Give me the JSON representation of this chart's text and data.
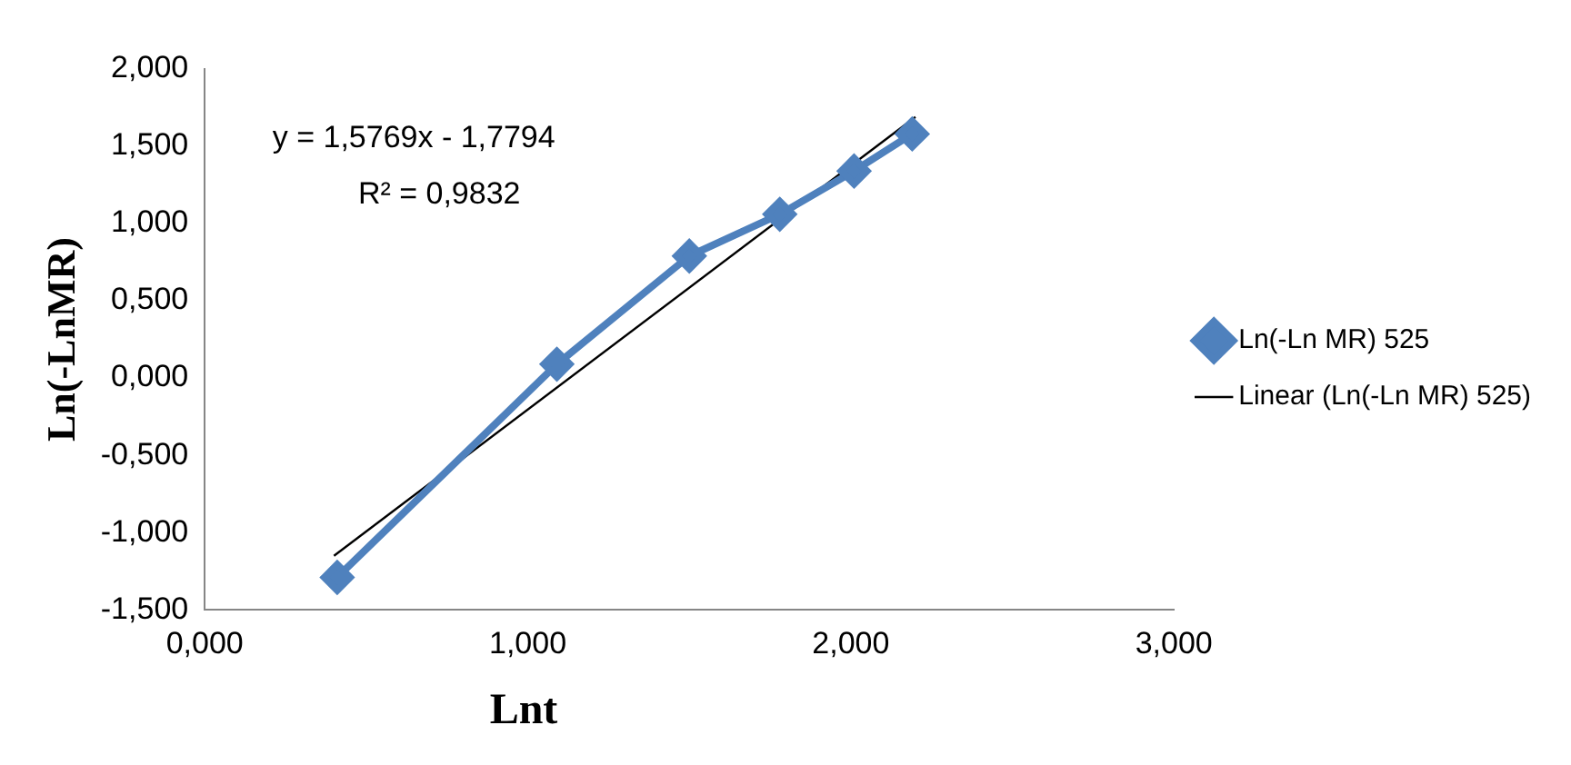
{
  "chart_data": {
    "type": "line",
    "xlabel": "Lnt",
    "ylabel": "Ln(-LnMR)",
    "annotations": [
      "y = 1,5769x - 1,7794",
      "R² = 0,9832"
    ],
    "xlim": [
      0,
      3
    ],
    "xticks": [
      {
        "value": 0,
        "label": "0,000"
      },
      {
        "value": 1,
        "label": "1,000"
      },
      {
        "value": 2,
        "label": "2,000"
      },
      {
        "value": 3,
        "label": "3,000"
      }
    ],
    "ylim": [
      -1.5,
      2
    ],
    "yticks": [
      {
        "value": -1.5,
        "label": "-1,500"
      },
      {
        "value": -1,
        "label": "-1,000"
      },
      {
        "value": -0.5,
        "label": "-0,500"
      },
      {
        "value": 0,
        "label": "0,000"
      },
      {
        "value": 0.5,
        "label": "0,500"
      },
      {
        "value": 1,
        "label": "1,000"
      },
      {
        "value": 1.5,
        "label": "1,500"
      },
      {
        "value": 2,
        "label": "2,000"
      }
    ],
    "legend": "right",
    "grid": false,
    "series": [
      {
        "name": "Ln(-Ln MR) 525",
        "color": "#4f81bd",
        "marker": "diamond",
        "x": [
          0.41,
          1.09,
          1.5,
          1.78,
          2.01,
          2.19
        ],
        "values": [
          -1.29,
          0.09,
          0.79,
          1.06,
          1.34,
          1.58
        ]
      },
      {
        "name": "Linear (Ln(-Ln MR) 525)",
        "color": "#000000",
        "marker": "none",
        "x": [
          0.4,
          2.2
        ],
        "values": [
          -1.15,
          1.69
        ]
      }
    ]
  }
}
